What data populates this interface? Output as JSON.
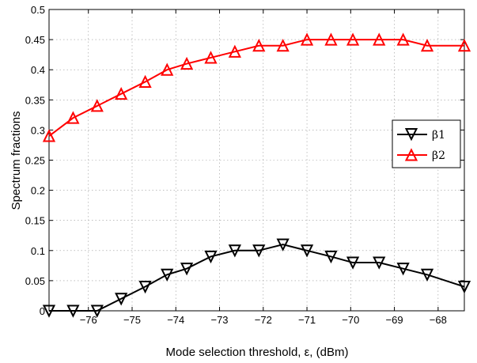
{
  "chart_data": {
    "type": "line",
    "xlabel": "Mode selection threshold, ε, (dBm)",
    "ylabel": "Spectrum fractions",
    "xlim": [
      -76.9,
      -67.4
    ],
    "ylim": [
      0,
      0.5
    ],
    "xticks": [
      -76,
      -75,
      -74,
      -73,
      -72,
      -71,
      -70,
      -69,
      -68
    ],
    "xtick_labels": [
      "−76",
      "−75",
      "−74",
      "−73",
      "−72",
      "−71",
      "−70",
      "−69",
      "−68"
    ],
    "yticks": [
      0,
      0.05,
      0.1,
      0.15,
      0.2,
      0.25,
      0.3,
      0.35,
      0.4,
      0.45,
      0.5
    ],
    "ytick_labels": [
      "0",
      "0.05",
      "0.1",
      "0.15",
      "0.2",
      "0.25",
      "0.3",
      "0.35",
      "0.4",
      "0.45",
      "0.5"
    ],
    "grid": true,
    "legend_position": "right",
    "x": [
      -76.9,
      -76.35,
      -75.8,
      -75.25,
      -74.7,
      -74.2,
      -73.75,
      -73.2,
      -72.65,
      -72.1,
      -71.55,
      -71.0,
      -70.45,
      -69.95,
      -69.35,
      -68.8,
      -68.25,
      -67.4
    ],
    "series": [
      {
        "name": "β1",
        "color": "#000000",
        "marker": "triangle-down",
        "values": [
          0.0,
          0.0,
          0.0,
          0.02,
          0.04,
          0.06,
          0.07,
          0.09,
          0.1,
          0.1,
          0.11,
          0.1,
          0.09,
          0.08,
          0.08,
          0.07,
          0.06,
          0.04
        ]
      },
      {
        "name": "β2",
        "color": "#ff0000",
        "marker": "triangle-up",
        "values": [
          0.29,
          0.32,
          0.34,
          0.36,
          0.38,
          0.4,
          0.41,
          0.42,
          0.43,
          0.44,
          0.44,
          0.45,
          0.45,
          0.45,
          0.45,
          0.45,
          0.44,
          0.44
        ]
      }
    ]
  }
}
